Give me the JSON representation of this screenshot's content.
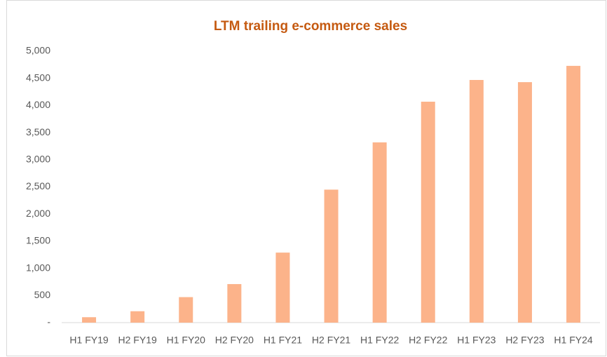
{
  "chart_data": {
    "type": "bar",
    "title": "LTM trailing   e-commerce sales",
    "categories": [
      "H1 FY19",
      "H2 FY19",
      "H1 FY20",
      "H2 FY20",
      "H1 FY21",
      "H2 FY21",
      "H1 FY22",
      "H2 FY22",
      "H1 FY23",
      "H2 FY23",
      "H1 FY24"
    ],
    "values": [
      100,
      210,
      470,
      710,
      1290,
      2450,
      3320,
      4070,
      4470,
      4430,
      4730
    ],
    "color": "#fcb38a",
    "ylim": [
      0,
      5000
    ],
    "yticks": [
      {
        "value": 0,
        "label": "-"
      },
      500,
      {
        "value": 1000,
        "label": "1,000"
      },
      {
        "value": 1500,
        "label": "1,500"
      },
      {
        "value": 2000,
        "label": "2,000"
      },
      {
        "value": 2500,
        "label": "2,500"
      },
      {
        "value": 3000,
        "label": "3,000"
      },
      {
        "value": 3500,
        "label": "3,500"
      },
      {
        "value": 4000,
        "label": "4,000"
      },
      {
        "value": 4500,
        "label": "4,500"
      },
      {
        "value": 5000,
        "label": "5,000"
      }
    ],
    "grid": false
  }
}
